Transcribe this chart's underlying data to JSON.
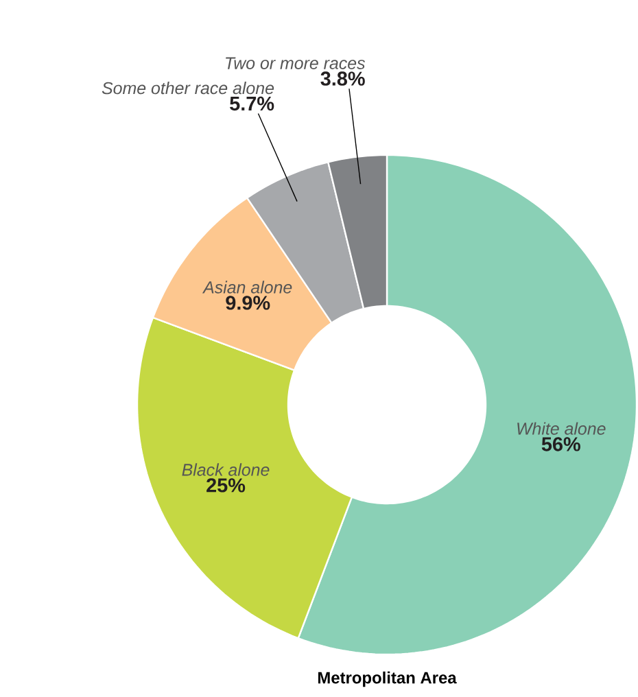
{
  "chart_data": {
    "type": "donut",
    "title": "Metropolitan Area",
    "categories": [
      "White alone",
      "Black alone",
      "Asian alone",
      "Some other race alone",
      "Two or more races"
    ],
    "values": [
      56,
      25,
      9.9,
      5.7,
      3.8
    ],
    "value_labels": [
      "56%",
      "25%",
      "9.9%",
      "5.7%",
      "3.8%"
    ],
    "colors": [
      "#8ad0b6",
      "#c5d843",
      "#fdc78f",
      "#a6a8ab",
      "#808285"
    ]
  }
}
